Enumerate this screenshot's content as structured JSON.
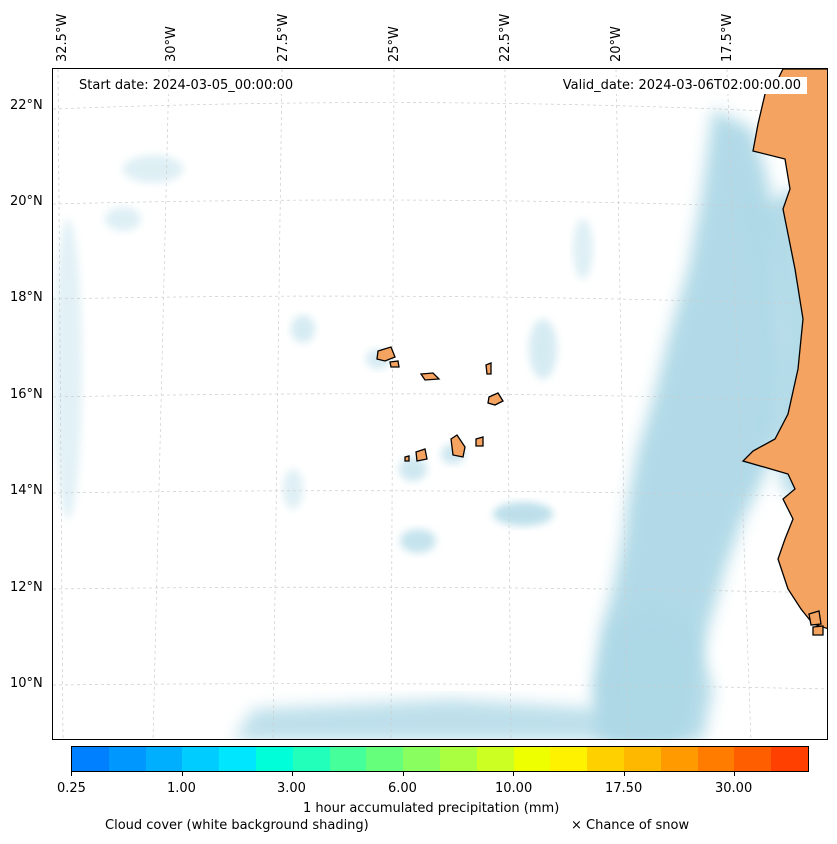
{
  "header": {
    "start_date": "Start date: 2024-03-05_00:00:00",
    "valid_date": "Valid_date: 2024-03-06T02:00:00.00"
  },
  "axes": {
    "longitude_labels": [
      "32.5°W",
      "30°W",
      "27.5°W",
      "25°W",
      "22.5°W",
      "20°W",
      "17.5°W"
    ],
    "latitude_labels": [
      "22°N",
      "20°N",
      "18°N",
      "16°N",
      "14°N",
      "12°N",
      "10°N"
    ]
  },
  "map": {
    "region": "Cabo Verde and West African coast",
    "land_color": "#f4a460",
    "cloud_color": "#add8e6",
    "coastline_color": "#000000",
    "gridlines": true
  },
  "colorbar": {
    "colors": [
      "#0080ff",
      "#0098ff",
      "#00b0ff",
      "#00ccff",
      "#00e6ff",
      "#00ffd9",
      "#22ffbb",
      "#44ff9a",
      "#66ff7c",
      "#88ff5e",
      "#aaff40",
      "#ccff22",
      "#eeff00",
      "#fff200",
      "#ffd000",
      "#ffb800",
      "#ff9a00",
      "#ff7c00",
      "#ff5e00",
      "#ff4000"
    ],
    "tick_labels": [
      "0.25",
      "1.00",
      "3.00",
      "6.00",
      "10.00",
      "17.50",
      "30.00"
    ],
    "label": "1 hour accumulated precipitation (mm)"
  },
  "legend": {
    "cloud_cover": "Cloud cover (white background shading)",
    "snow": "× Chance of snow"
  }
}
